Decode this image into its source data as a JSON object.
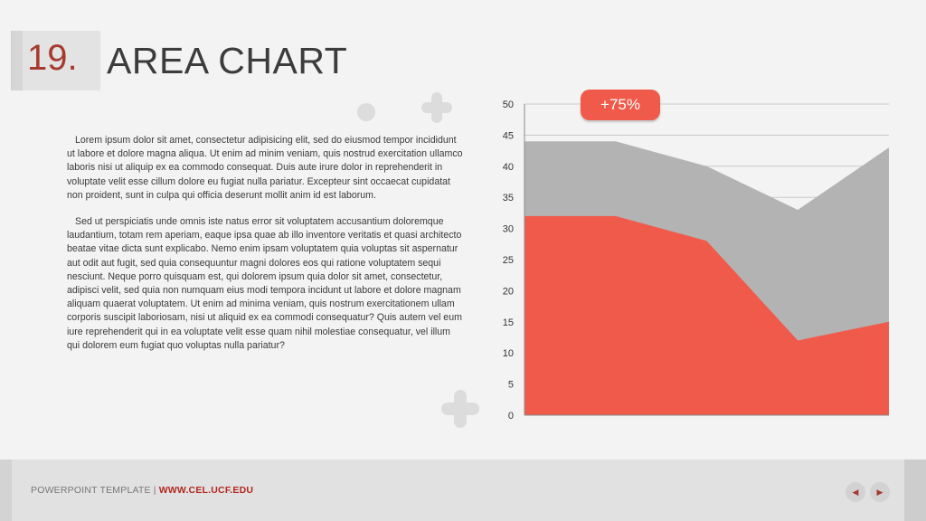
{
  "slide": {
    "number": "19.",
    "title": "AREA CHART",
    "paragraphs": [
      "Lorem ipsum dolor sit amet, consectetur adipisicing elit, sed do eiusmod tempor incididunt ut labore et dolore magna aliqua. Ut enim ad minim veniam, quis nostrud exercitation ullamco laboris nisi ut aliquip ex ea commodo consequat. Duis aute irure dolor in reprehenderit in voluptate velit esse cillum dolore eu fugiat nulla pariatur. Excepteur sint occaecat cupidatat non proident, sunt in culpa qui officia deserunt mollit anim id est laborum.",
      "Sed ut perspiciatis unde omnis iste natus error sit voluptatem accusantium doloremque laudantium, totam rem aperiam, eaque ipsa quae ab illo inventore veritatis et quasi architecto beatae vitae dicta sunt explicabo. Nemo enim ipsam voluptatem quia voluptas sit aspernatur aut odit aut fugit, sed quia consequuntur magni dolores eos qui ratione voluptatem sequi nesciunt. Neque porro quisquam est, qui dolorem ipsum quia dolor sit amet, consectetur, adipisci velit, sed quia non numquam eius modi tempora incidunt ut labore et dolore magnam aliquam quaerat voluptatem. Ut enim ad minima veniam, quis nostrum exercitationem ullam corporis suscipit laboriosam, nisi ut aliquid ex ea commodi consequatur? Quis autem vel eum iure reprehenderit qui in ea voluptate velit esse quam nihil molestiae consequatur, vel illum qui dolorem eum fugiat quo voluptas nulla pariatur?"
    ],
    "badge": "+75%"
  },
  "footer": {
    "label": "POWERPOINT TEMPLATE",
    "separator": "|",
    "url": "WWW.CEL.UCF.EDU",
    "prev_icon": "◀",
    "next_icon": "▶"
  },
  "colors": {
    "accent": "#f05a4a",
    "gray_series": "#b3b3b3",
    "title_number": "#a63a2f"
  },
  "icons": [
    "circle-decoration",
    "plus-decoration",
    "prev-arrow-icon",
    "next-arrow-icon"
  ],
  "chart_data": {
    "type": "area",
    "x": [
      1,
      2,
      3,
      4,
      5
    ],
    "series": [
      {
        "values": [
          32,
          32,
          28,
          12,
          15
        ],
        "color": "#f05a4a"
      },
      {
        "values": [
          44,
          44,
          40,
          33,
          43
        ],
        "color": "#b3b3b3"
      }
    ],
    "ylim": [
      0,
      50
    ],
    "yticks": [
      0,
      5,
      10,
      15,
      20,
      25,
      30,
      35,
      40,
      45,
      50
    ],
    "grid": true,
    "title": "",
    "xlabel": "",
    "ylabel": ""
  }
}
